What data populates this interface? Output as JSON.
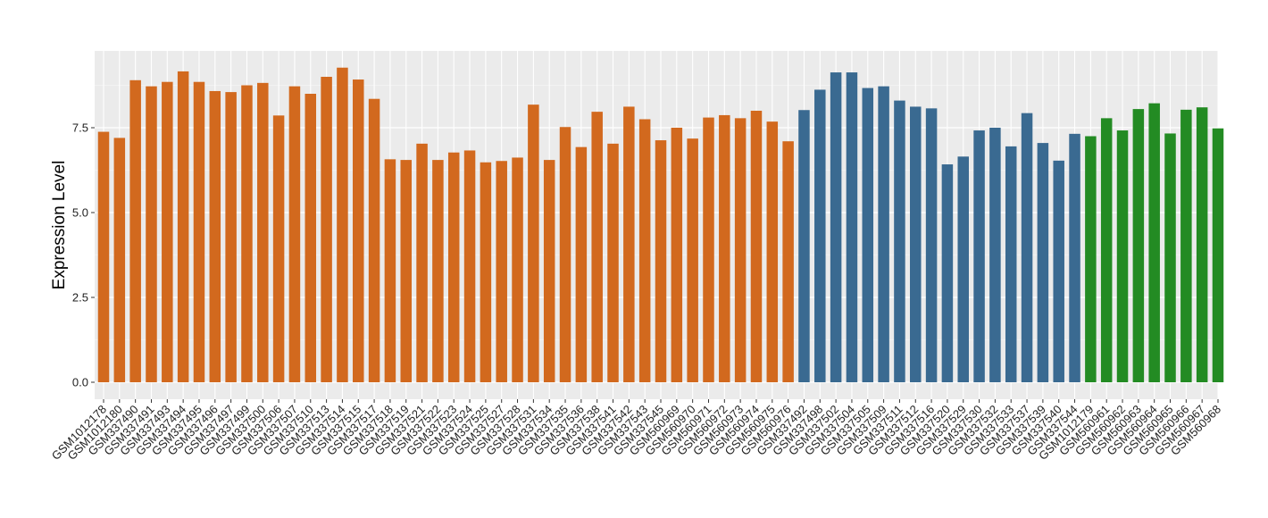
{
  "chart_data": {
    "type": "bar",
    "ylabel": "Expression Level",
    "xlabel": "",
    "ylim": [
      0,
      9.75
    ],
    "yticks": [
      0.0,
      2.5,
      5.0,
      7.5
    ],
    "ytick_labels": [
      "0.0",
      "2.5",
      "5.0",
      "7.5"
    ],
    "grid": true,
    "legend": "none",
    "panel_background": "#ebebeb",
    "categories": [
      "GSM1012178",
      "GSM1012180",
      "GSM337490",
      "GSM337491",
      "GSM337493",
      "GSM337494",
      "GSM337495",
      "GSM337496",
      "GSM337497",
      "GSM337499",
      "GSM337500",
      "GSM337506",
      "GSM337507",
      "GSM337510",
      "GSM337513",
      "GSM337514",
      "GSM337515",
      "GSM337517",
      "GSM337518",
      "GSM337519",
      "GSM337521",
      "GSM337522",
      "GSM337523",
      "GSM337524",
      "GSM337525",
      "GSM337527",
      "GSM337528",
      "GSM337531",
      "GSM337534",
      "GSM337535",
      "GSM337536",
      "GSM337538",
      "GSM337541",
      "GSM337542",
      "GSM337543",
      "GSM337545",
      "GSM560969",
      "GSM560970",
      "GSM560971",
      "GSM560972",
      "GSM560973",
      "GSM560974",
      "GSM560975",
      "GSM560976",
      "GSM337492",
      "GSM337498",
      "GSM337502",
      "GSM337504",
      "GSM337505",
      "GSM337509",
      "GSM337511",
      "GSM337512",
      "GSM337516",
      "GSM337520",
      "GSM337529",
      "GSM337530",
      "GSM337532",
      "GSM337533",
      "GSM337537",
      "GSM337539",
      "GSM337540",
      "GSM337544",
      "GSM1012179",
      "GSM560961",
      "GSM560962",
      "GSM560963",
      "GSM560964",
      "GSM560965",
      "GSM560966",
      "GSM560967",
      "GSM560968"
    ],
    "values": [
      7.38,
      7.2,
      8.9,
      8.72,
      8.85,
      9.16,
      8.85,
      8.58,
      8.55,
      8.75,
      8.82,
      7.86,
      8.72,
      8.5,
      9.0,
      9.27,
      8.92,
      8.35,
      6.57,
      6.55,
      7.03,
      6.55,
      6.77,
      6.83,
      6.48,
      6.52,
      6.62,
      8.18,
      6.55,
      7.52,
      6.93,
      7.97,
      7.03,
      8.12,
      7.75,
      7.13,
      7.5,
      7.18,
      7.8,
      7.87,
      7.78,
      8.0,
      7.68,
      7.1,
      8.02,
      8.62,
      9.13,
      9.13,
      8.67,
      8.72,
      8.3,
      8.12,
      8.07,
      6.42,
      6.65,
      7.42,
      7.5,
      6.95,
      7.93,
      7.05,
      6.53,
      7.32,
      7.25,
      7.78,
      7.42,
      8.05,
      8.22,
      7.33,
      8.03,
      8.1,
      7.48
    ],
    "groups": [
      44,
      18,
      9
    ],
    "group_colors": [
      "#d2691e",
      "#3a6a91",
      "#238b23"
    ]
  }
}
